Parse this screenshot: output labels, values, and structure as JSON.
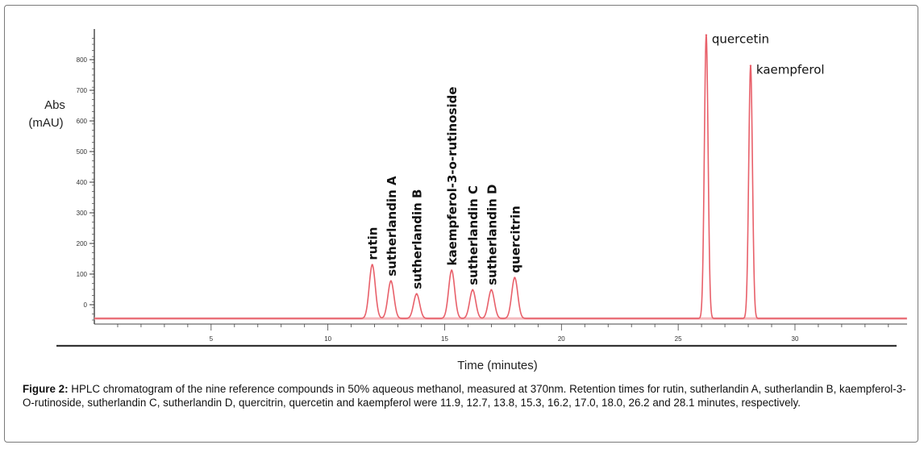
{
  "chart_data": {
    "type": "line",
    "ylabel_line1": "Abs",
    "ylabel_line2": "(mAU)",
    "xlabel": "Time (minutes)",
    "x_ticks": [
      5,
      10,
      15,
      20,
      25,
      30
    ],
    "y_ticks": [
      0,
      100,
      200,
      300,
      400,
      500,
      600,
      700,
      800
    ],
    "xlim": [
      0,
      34.8
    ],
    "ylim": [
      -50,
      900
    ],
    "grid": false,
    "legend": "none",
    "baseline": -45,
    "line_color": "#e8606a",
    "peaks": [
      {
        "label": "rutin",
        "x": 11.9,
        "y": 130,
        "width": 0.13
      },
      {
        "label": "sutherlandin A",
        "x": 12.7,
        "y": 77,
        "width": 0.13
      },
      {
        "label": "sutherlandin B",
        "x": 13.8,
        "y": 35,
        "width": 0.13
      },
      {
        "label": "kaempferol-3-o-rutinoside",
        "x": 15.3,
        "y": 112,
        "width": 0.13
      },
      {
        "label": "sutherlandin C",
        "x": 16.2,
        "y": 48,
        "width": 0.13
      },
      {
        "label": "sutherlandin D",
        "x": 17.0,
        "y": 48,
        "width": 0.13
      },
      {
        "label": "quercitrin",
        "x": 18.0,
        "y": 88,
        "width": 0.13
      },
      {
        "label": "quercetin",
        "x": 26.2,
        "y": 880,
        "width": 0.08
      },
      {
        "label": "kaempferol",
        "x": 28.1,
        "y": 780,
        "width": 0.08
      }
    ]
  },
  "caption": {
    "label": "Figure 2:",
    "text": " HPLC chromatogram of the nine reference compounds in 50% aqueous methanol, measured at 370nm. Retention times for rutin, sutherlandin A, sutherlandin B, kaempferol-3-O-rutinoside, sutherlandin C, sutherlandin D, quercitrin, quercetin and kaempferol were 11.9, 12.7, 13.8, 15.3, 16.2, 17.0, 18.0, 26.2 and 28.1 minutes, respectively."
  }
}
